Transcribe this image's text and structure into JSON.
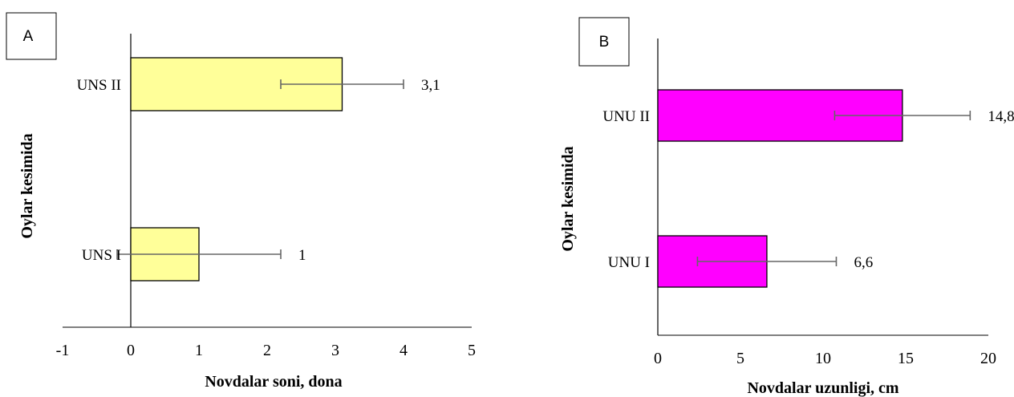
{
  "chart_data": [
    {
      "panel": "A",
      "type": "bar",
      "orientation": "horizontal",
      "categories": [
        "UNS I",
        "UNS II"
      ],
      "values": [
        1,
        3.1
      ],
      "value_labels": [
        "1",
        "3,1"
      ],
      "error": [
        1.2,
        0.9
      ],
      "xlabel": "Novdalar soni, dona",
      "ylabel": "Oylar kesimida",
      "xlim": [
        -1,
        5
      ],
      "xticks": [
        -1,
        0,
        1,
        2,
        3,
        4,
        5
      ],
      "color": "#ffff99"
    },
    {
      "panel": "B",
      "type": "bar",
      "orientation": "horizontal",
      "categories": [
        "UNU I",
        "UNU II"
      ],
      "values": [
        6.6,
        14.8
      ],
      "value_labels": [
        "6,6",
        "14,8"
      ],
      "error": [
        4.2,
        4.1
      ],
      "xlabel": "Novdalar uzunligi, cm",
      "ylabel": "Oylar kesimida",
      "xlim": [
        0,
        20
      ],
      "xticks": [
        0,
        5,
        10,
        15,
        20
      ],
      "color": "#ff00ff"
    }
  ]
}
